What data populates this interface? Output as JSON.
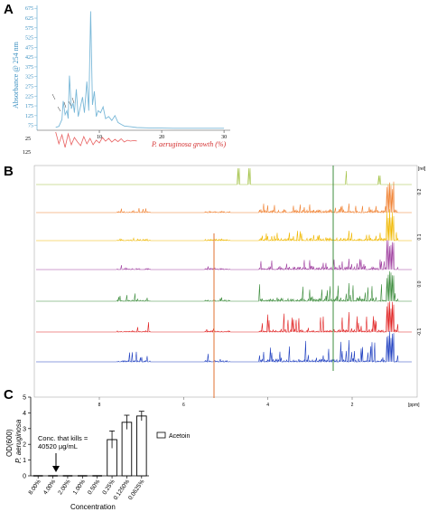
{
  "panels": {
    "a": {
      "letter": "A"
    },
    "b": {
      "letter": "B"
    },
    "c": {
      "letter": "C"
    }
  },
  "chart_data": [
    {
      "id": "A",
      "type": "line",
      "ylabel": "Absorbance @ 254 nm",
      "secondary_label": "P. aeruginosa growth (%)",
      "y_ticks": [
        75,
        125,
        175,
        225,
        275,
        325,
        375,
        425,
        475,
        525,
        575,
        625,
        675
      ],
      "x_ticks": [
        10,
        20,
        30
      ],
      "secondary_ticks": [
        25,
        125
      ],
      "xlim": [
        0,
        31
      ],
      "ylim": [
        50,
        690
      ],
      "colors": {
        "chromatogram": "#7ab8d8",
        "growth": "#e86060",
        "axis_label": "#3a8fc0",
        "growth_label": "#d43030"
      },
      "series": [
        {
          "x": [
            3,
            3.5,
            4,
            4.2,
            4.5,
            4.8,
            5,
            5.2,
            5.5,
            5.8,
            6,
            6.3,
            6.6,
            7,
            7.3,
            7.6,
            8,
            8.3,
            8.6,
            8.9,
            9.2,
            9.5,
            9.8,
            10.2,
            10.6,
            11,
            11.5,
            12,
            12.5,
            13,
            13.5,
            14,
            15,
            16,
            18,
            20,
            22,
            24,
            26,
            28,
            30
          ],
          "y": [
            65,
            70,
            105,
            200,
            130,
            150,
            110,
            330,
            160,
            190,
            140,
            260,
            120,
            175,
            220,
            140,
            300,
            150,
            660,
            180,
            250,
            120,
            150,
            140,
            170,
            110,
            120,
            100,
            125,
            90,
            80,
            72,
            68,
            64,
            62,
            61,
            60,
            60,
            60,
            60,
            60
          ]
        },
        {
          "x": [
            3,
            3.5,
            4,
            4.5,
            5,
            5.5,
            6,
            6.5,
            7,
            7.5,
            8,
            8.5,
            9,
            9.5,
            10,
            10.5,
            11,
            11.5,
            12,
            12.5,
            13,
            13.5,
            14,
            14.5,
            15,
            15.5,
            16
          ],
          "y": [
            125,
            60,
            110,
            40,
            115,
            55,
            95,
            70,
            50,
            100,
            60,
            90,
            55,
            80,
            65,
            95,
            75,
            90,
            70,
            85,
            72,
            88,
            70,
            80,
            75,
            78,
            76
          ]
        }
      ]
    },
    {
      "id": "B",
      "type": "line",
      "xlabel": "[ppm]",
      "x_ticks": [
        8,
        6,
        4,
        2
      ],
      "right_ticks": [
        "0.2",
        "0.1",
        "0.0",
        "-0.1"
      ],
      "right_unit": "[rel]",
      "xlim": [
        9.5,
        0.5
      ],
      "trace_colors": [
        "#a0c040",
        "#f08030",
        "#f0b800",
        "#a040a0",
        "#3c8c3c",
        "#e02020",
        "#2040c0"
      ]
    },
    {
      "id": "C",
      "type": "bar",
      "categories": [
        "8.00%",
        "4.00%",
        "2.00%",
        "1.00%",
        "0.50%",
        "0.25%",
        "0.1250%",
        "0.0625%"
      ],
      "values": [
        0,
        0,
        0,
        0,
        0,
        2.3,
        3.4,
        3.8
      ],
      "errors": [
        0,
        0,
        0,
        0,
        0,
        0.55,
        0.45,
        0.3
      ],
      "ylim": [
        0,
        5
      ],
      "y_ticks": [
        0,
        1,
        2,
        3,
        4,
        5
      ],
      "ylabel_line1": "OD(600)",
      "ylabel_line2": "P. aeruginosa",
      "xlabel": "Concentration",
      "legend": "Acetoin",
      "annotation_line1": "Conc. that kills =",
      "annotation_line2": "40520 µg/mL"
    }
  ]
}
